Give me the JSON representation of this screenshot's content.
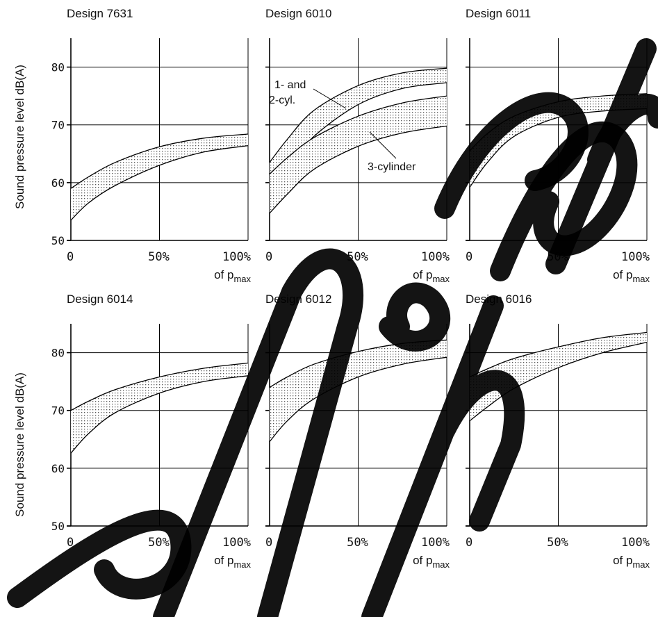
{
  "figure": {
    "y_axis_label": "Sound pressure level dB(A)",
    "x_caption_prefix": "of p",
    "x_caption_sub": "max"
  },
  "annotations": {
    "band_1_and_2_line1": "1- and",
    "band_1_and_2_line2": "2-cyl.",
    "band_3": "3-cylinder"
  },
  "colors": {
    "ink": "#000000",
    "band_dots": "#555555",
    "background": "#ffffff"
  },
  "chart_data": [
    {
      "type": "area",
      "title": "Design 7631",
      "xlabel": "of p max",
      "ylabel": "Sound pressure level dB(A)",
      "x_ticks": [
        "0",
        "50%",
        "100%"
      ],
      "y_ticks": [
        "50",
        "60",
        "70",
        "80"
      ],
      "xlim": [
        0,
        100
      ],
      "ylim": [
        50,
        85
      ],
      "grid": true,
      "x": [
        0,
        10,
        25,
        50,
        75,
        100
      ],
      "series": [
        {
          "band": "A",
          "upper": [
            59.0,
            61.0,
            63.5,
            66.2,
            67.7,
            68.4
          ],
          "lower": [
            53.5,
            56.5,
            59.5,
            63.0,
            65.3,
            66.4
          ]
        }
      ]
    },
    {
      "type": "area",
      "title": "Design 6010",
      "xlabel": "of p max",
      "ylabel": "Sound pressure level dB(A)",
      "x_ticks": [
        "0",
        "50%",
        "100%"
      ],
      "y_ticks": [
        "50",
        "60",
        "70",
        "80"
      ],
      "xlim": [
        0,
        100
      ],
      "ylim": [
        50,
        85
      ],
      "grid": true,
      "x": [
        0,
        10,
        25,
        50,
        75,
        100
      ],
      "series": [
        {
          "band": "1- and 2-cyl.",
          "upper": [
            63.5,
            67.5,
            72.5,
            76.8,
            79.0,
            79.8
          ],
          "lower": [
            57.5,
            62.5,
            68.0,
            73.5,
            76.3,
            77.3
          ]
        },
        {
          "band": "3-cylinder",
          "upper": [
            61.5,
            64.3,
            67.8,
            71.5,
            73.8,
            75.0
          ],
          "lower": [
            54.7,
            58.0,
            62.3,
            66.3,
            68.6,
            69.8
          ]
        }
      ]
    },
    {
      "type": "area",
      "title": "Design 6011",
      "xlabel": "of p max",
      "ylabel": "Sound pressure level dB(A)",
      "x_ticks": [
        "0",
        "50%",
        "100%"
      ],
      "y_ticks": [
        "50",
        "60",
        "70",
        "80"
      ],
      "xlim": [
        0,
        100
      ],
      "ylim": [
        50,
        85
      ],
      "grid": true,
      "x": [
        0,
        10,
        25,
        50,
        75,
        100
      ],
      "series": [
        {
          "band": "A",
          "upper": [
            65.5,
            68.5,
            71.5,
            74.0,
            75.0,
            75.4
          ],
          "lower": [
            59.2,
            63.5,
            68.0,
            71.3,
            72.4,
            72.8
          ]
        }
      ]
    },
    {
      "type": "area",
      "title": "Design 6014",
      "xlabel": "of p max",
      "ylabel": "Sound pressure level dB(A)",
      "x_ticks": [
        "0",
        "50%",
        "100%"
      ],
      "y_ticks": [
        "50",
        "60",
        "70",
        "80"
      ],
      "xlim": [
        0,
        100
      ],
      "ylim": [
        50,
        85
      ],
      "grid": true,
      "x": [
        0,
        10,
        25,
        50,
        75,
        100
      ],
      "series": [
        {
          "band": "A",
          "upper": [
            70.0,
            71.6,
            73.6,
            75.8,
            77.3,
            78.2
          ],
          "lower": [
            62.6,
            66.0,
            69.6,
            73.0,
            75.0,
            76.0
          ]
        }
      ]
    },
    {
      "type": "area",
      "title": "Design 6012",
      "xlabel": "of p max",
      "ylabel": "Sound pressure level dB(A)",
      "x_ticks": [
        "0",
        "50%",
        "100%"
      ],
      "y_ticks": [
        "50",
        "60",
        "70",
        "80"
      ],
      "xlim": [
        0,
        100
      ],
      "ylim": [
        50,
        85
      ],
      "grid": true,
      "x": [
        0,
        10,
        25,
        50,
        75,
        100
      ],
      "series": [
        {
          "band": "A",
          "upper": [
            74.0,
            75.8,
            78.0,
            80.2,
            81.6,
            82.2
          ],
          "lower": [
            64.6,
            68.2,
            72.0,
            75.8,
            78.0,
            79.2
          ]
        }
      ]
    },
    {
      "type": "area",
      "title": "Design 6016",
      "xlabel": "of p max",
      "ylabel": "Sound pressure level dB(A)",
      "x_ticks": [
        "0",
        "50%",
        "100%"
      ],
      "y_ticks": [
        "50",
        "60",
        "70",
        "80"
      ],
      "xlim": [
        0,
        100
      ],
      "ylim": [
        50,
        85
      ],
      "grid": true,
      "x": [
        0,
        10,
        25,
        50,
        75,
        100
      ],
      "series": [
        {
          "band": "A",
          "upper": [
            75.8,
            77.2,
            79.0,
            81.0,
            82.6,
            83.5
          ],
          "lower": [
            68.2,
            70.6,
            73.8,
            77.4,
            80.0,
            81.8
          ]
        }
      ]
    }
  ]
}
